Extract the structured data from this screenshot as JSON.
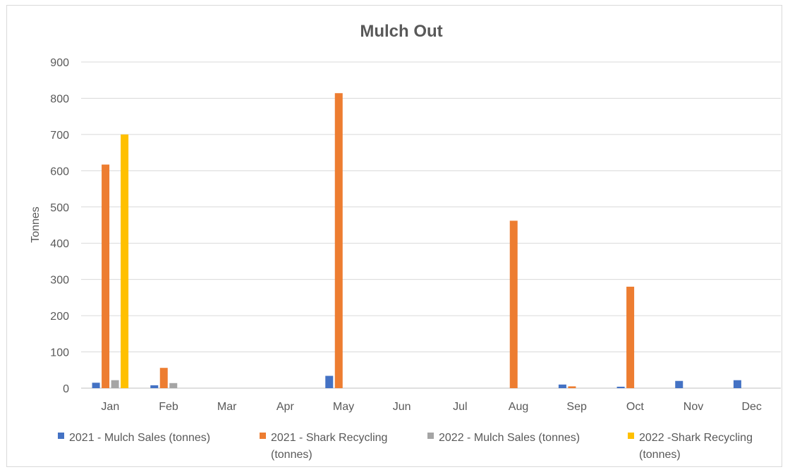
{
  "chart_data": {
    "type": "bar",
    "title": "Mulch Out",
    "xlabel": "",
    "ylabel": "Tonnes",
    "ylim": [
      0,
      900
    ],
    "yticks": [
      0,
      100,
      200,
      300,
      400,
      500,
      600,
      700,
      800,
      900
    ],
    "grid": true,
    "legend_position": "bottom",
    "categories": [
      "Jan",
      "Feb",
      "Mar",
      "Apr",
      "May",
      "Jun",
      "Jul",
      "Aug",
      "Sep",
      "Oct",
      "Nov",
      "Dec"
    ],
    "series": [
      {
        "name": "2021 - Mulch Sales (tonnes)",
        "color": "#4472c4",
        "values": [
          15,
          8,
          0,
          0,
          34,
          0,
          0,
          0,
          10,
          4,
          20,
          22
        ]
      },
      {
        "name": "2021 - Shark Recycling (tonnes)",
        "color": "#ed7d31",
        "values": [
          617,
          56,
          0,
          0,
          814,
          0,
          0,
          462,
          5,
          280,
          0,
          0
        ]
      },
      {
        "name": "2022 - Mulch Sales (tonnes)",
        "color": "#a5a5a5",
        "values": [
          22,
          14,
          0,
          0,
          0,
          0,
          0,
          0,
          0,
          0,
          0,
          0
        ]
      },
      {
        "name": "2022 -Shark Recycling (tonnes)",
        "color": "#ffc000",
        "values": [
          700,
          0,
          0,
          0,
          0,
          0,
          0,
          0,
          0,
          0,
          0,
          0
        ]
      }
    ]
  }
}
